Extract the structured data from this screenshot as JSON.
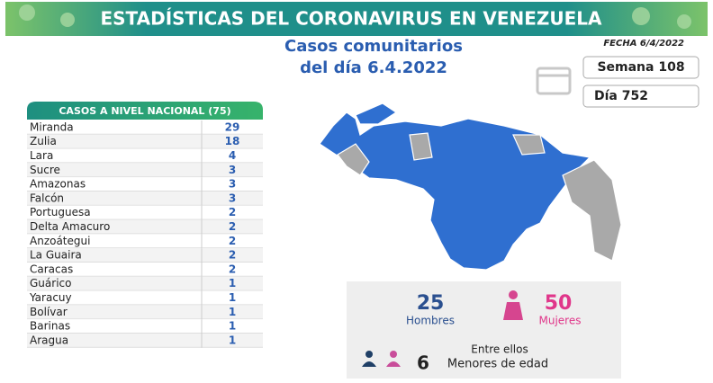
{
  "header": {
    "title": "ESTADÍSTICAS DEL CORONAVIRUS EN VENEZUELA",
    "date": "FECHA 6/4/2022"
  },
  "subtitle": [
    "Casos comunitarios",
    "del día 6.4.2022"
  ],
  "week": "Semana 108",
  "day": "Día 752",
  "table": {
    "title": "CASOS A NIVEL NACIONAL (75)",
    "rows": [
      [
        "Miranda",
        "29"
      ],
      [
        "Zulia",
        "18"
      ],
      [
        "Lara",
        "4"
      ],
      [
        "Sucre",
        "3"
      ],
      [
        "Amazonas",
        "3"
      ],
      [
        "Falcón",
        "3"
      ],
      [
        "Portuguesa",
        "2"
      ],
      [
        "Delta Amacuro",
        "2"
      ],
      [
        "Anzoátegui",
        "2"
      ],
      [
        "La Guaira",
        "2"
      ],
      [
        "Caracas",
        "2"
      ],
      [
        "Guárico",
        "1"
      ],
      [
        "Yaracuy",
        "1"
      ],
      [
        "Bolívar",
        "1"
      ],
      [
        "Barinas",
        "1"
      ],
      [
        "Aragua",
        "1"
      ]
    ]
  },
  "stats": {
    "men_count": "25",
    "men_label": "Hombres",
    "women_count": "50",
    "women_label": "Mujeres",
    "among": "Entre ellos",
    "minors_count": "6",
    "minors_label": "Menores de edad"
  }
}
